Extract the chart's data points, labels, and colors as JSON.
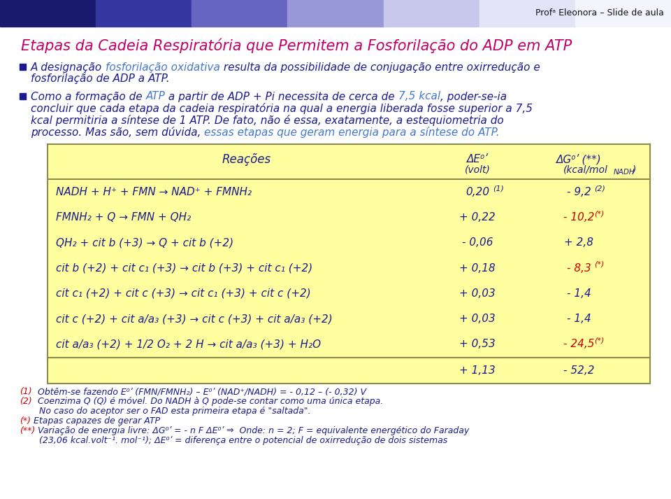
{
  "header_text": "Profᵃ Eleonora – Slide de aula",
  "title": "Etapas da Cadeia Respiratória que Permitem a Fosforilação do ADP em ATP",
  "title_color": "#c0006a",
  "table_bg": "#ffffa0",
  "table_border": "#9a9a50",
  "table_header_color": "#1a1a8e",
  "table_rows": [
    {
      "reaction": "NADH + H⁺ + FMN → NAD⁺ + FMNH₂",
      "e0": "0,20",
      "e0_super": "(1)",
      "dg": "- 9,2",
      "dg_super": "(2)",
      "dg_red": false
    },
    {
      "reaction": "FMNH₂ + Q → FMN + QH₂",
      "e0": "+ 0,22",
      "e0_super": "",
      "dg": "- 10,2",
      "dg_super": "(*)",
      "dg_red": true
    },
    {
      "reaction": "QH₂ + cit b (+3) → Q + cit b (+2)",
      "e0": "- 0,06",
      "e0_super": "",
      "dg": "+ 2,8",
      "dg_super": "",
      "dg_red": false
    },
    {
      "reaction": "cit b (+2) + cit c₁ (+3) → cit b (+3) + cit c₁ (+2)",
      "e0": "+ 0,18",
      "e0_super": "",
      "dg": "- 8,3",
      "dg_super": "(*)",
      "dg_red": true
    },
    {
      "reaction": "cit c₁ (+2) + cit c (+3) → cit c₁ (+3) + cit c (+2)",
      "e0": "+ 0,03",
      "e0_super": "",
      "dg": "- 1,4",
      "dg_super": "",
      "dg_red": false
    },
    {
      "reaction": "cit c (+2) + cit a/a₃ (+3) → cit c (+3) + cit a/a₃ (+2)",
      "e0": "+ 0,03",
      "e0_super": "",
      "dg": "- 1,4",
      "dg_super": "",
      "dg_red": false
    },
    {
      "reaction": "cit a/a₃ (+2) + 1/2 O₂ + 2 H → cit a/a₃ (+3) + H₂O",
      "e0": "+ 0,53",
      "e0_super": "",
      "dg": "- 24,5",
      "dg_super": "(*)",
      "dg_red": true
    }
  ],
  "table_total_e0": "+ 1,13",
  "table_total_dg": "- 52,2",
  "background_color": "#ffffff",
  "dark": "#1a1a8e",
  "red": "#cc0000",
  "blue_link": "#4477cc"
}
